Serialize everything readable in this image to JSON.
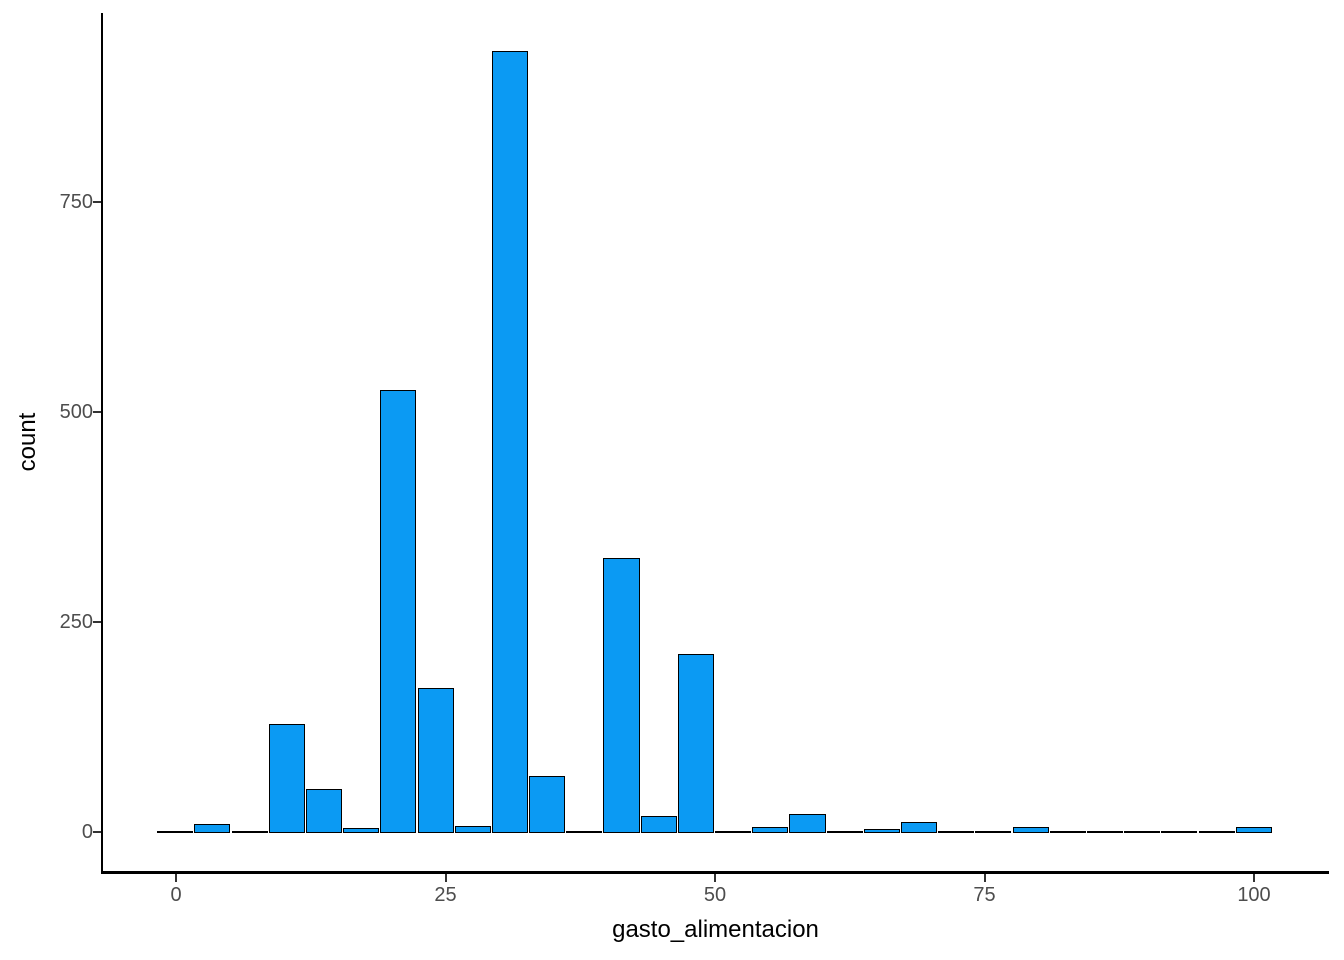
{
  "chart_data": {
    "type": "bar",
    "subtype": "histogram",
    "title": "",
    "xlabel": "gasto_alimentacion",
    "ylabel": "count",
    "x_ticks": [
      0,
      25,
      50,
      75,
      100
    ],
    "y_ticks": [
      0,
      250,
      500,
      750
    ],
    "xlim": [
      -6.8,
      107.2
    ],
    "ylim": [
      0,
      975
    ],
    "bin_width": 3.45,
    "bins": [
      {
        "start": -1.75,
        "count": 0
      },
      {
        "start": 1.7,
        "count": 8
      },
      {
        "start": 5.15,
        "count": 0
      },
      {
        "start": 8.6,
        "count": 127
      },
      {
        "start": 12.05,
        "count": 50
      },
      {
        "start": 15.5,
        "count": 3
      },
      {
        "start": 18.95,
        "count": 525
      },
      {
        "start": 22.4,
        "count": 170
      },
      {
        "start": 25.85,
        "count": 6
      },
      {
        "start": 29.3,
        "count": 928
      },
      {
        "start": 32.75,
        "count": 65
      },
      {
        "start": 36.2,
        "count": 0
      },
      {
        "start": 39.65,
        "count": 325
      },
      {
        "start": 43.1,
        "count": 18
      },
      {
        "start": 46.55,
        "count": 210
      },
      {
        "start": 50.0,
        "count": 0
      },
      {
        "start": 53.45,
        "count": 4
      },
      {
        "start": 56.9,
        "count": 20
      },
      {
        "start": 60.35,
        "count": 0
      },
      {
        "start": 63.8,
        "count": 2
      },
      {
        "start": 67.25,
        "count": 10
      },
      {
        "start": 70.7,
        "count": 0
      },
      {
        "start": 74.15,
        "count": 0
      },
      {
        "start": 77.6,
        "count": 4
      },
      {
        "start": 81.05,
        "count": 0
      },
      {
        "start": 84.5,
        "count": 0
      },
      {
        "start": 87.95,
        "count": 0
      },
      {
        "start": 91.4,
        "count": 0
      },
      {
        "start": 94.85,
        "count": 0
      },
      {
        "start": 98.3,
        "count": 5
      }
    ],
    "grid": false,
    "legend_position": "none",
    "colors": {
      "background": "#ffffff",
      "bar_fill": "#0b9af3",
      "bar_stroke": "#000000",
      "axis_line": "#000000",
      "tick_mark": "#333333",
      "tick_label": "#4d4d4d",
      "axis_title": "#000000"
    }
  }
}
